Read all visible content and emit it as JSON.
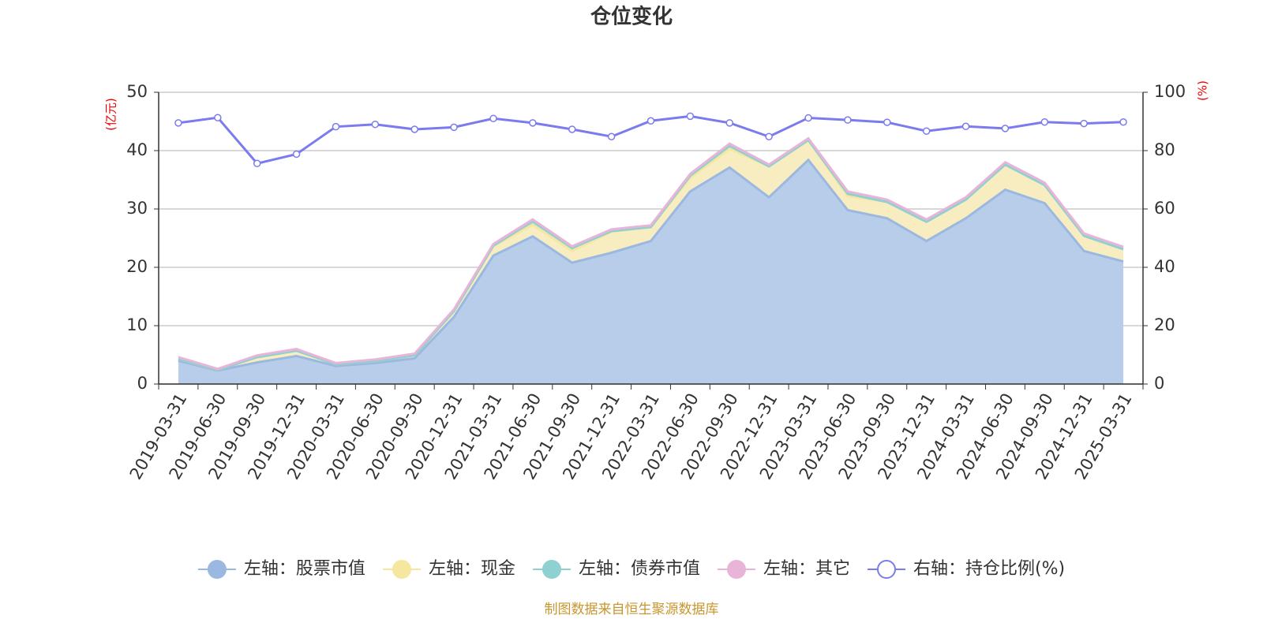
{
  "chart_data": {
    "type": "stacked-area-line",
    "title": "仓位变化",
    "ylabel": "(亿元)",
    "y2label": "(%)",
    "categories": [
      "2019-03-31",
      "2019-06-30",
      "2019-09-30",
      "2019-12-31",
      "2020-03-31",
      "2020-06-30",
      "2020-09-30",
      "2020-12-31",
      "2021-03-31",
      "2021-06-30",
      "2021-09-30",
      "2021-12-31",
      "2022-03-31",
      "2022-06-30",
      "2022-09-30",
      "2022-12-31",
      "2023-03-31",
      "2023-06-30",
      "2023-09-30",
      "2023-12-31",
      "2024-03-31",
      "2024-06-30",
      "2024-09-30",
      "2024-12-31",
      "2025-03-31"
    ],
    "series": [
      {
        "name": "左轴：股票市值",
        "color": "#9bb8e0",
        "fill": "#b8cdea",
        "values": [
          4.0,
          2.3,
          3.7,
          4.8,
          3.1,
          3.6,
          4.4,
          11.5,
          22.0,
          25.3,
          20.8,
          22.5,
          24.5,
          33.0,
          37.1,
          32.0,
          38.4,
          29.8,
          28.4,
          24.5,
          28.4,
          33.3,
          31.0,
          22.8,
          21.0
        ]
      },
      {
        "name": "左轴：现金",
        "color": "#f5e6a0",
        "fill": "#f8edc0",
        "values": [
          0.3,
          0.1,
          0.9,
          0.9,
          0.3,
          0.3,
          0.5,
          1.0,
          1.6,
          2.0,
          2.0,
          3.6,
          2.4,
          2.3,
          3.2,
          5.3,
          3.4,
          2.4,
          2.8,
          3.3,
          3.2,
          4.3,
          3.1,
          2.6,
          2.1
        ]
      },
      {
        "name": "左轴：债券市值",
        "color": "#8fd0d0",
        "fill": "#a8dcdc",
        "values": [
          0,
          0,
          0,
          0,
          0,
          0,
          0,
          0,
          0.1,
          0.6,
          0.5,
          0.1,
          0,
          0.4,
          0.5,
          0,
          0,
          0.4,
          0,
          0,
          0,
          0,
          0,
          0,
          0
        ]
      },
      {
        "name": "左轴：其它",
        "color": "#e8b4d8",
        "fill": "#f0cce4",
        "values": [
          0.3,
          0.2,
          0.3,
          0.3,
          0.2,
          0.3,
          0.3,
          0.3,
          0.3,
          0.3,
          0.3,
          0.3,
          0.3,
          0.3,
          0.4,
          0.3,
          0.3,
          0.4,
          0.4,
          0.4,
          0.4,
          0.4,
          0.4,
          0.4,
          0.4
        ]
      },
      {
        "name": "右轴：持仓比例(%)",
        "color": "#7b7bef",
        "axis": "y2",
        "values": [
          89.5,
          91.3,
          75.6,
          78.8,
          88.2,
          89.0,
          87.3,
          88.0,
          91.0,
          89.5,
          87.3,
          84.8,
          90.2,
          91.8,
          89.5,
          84.8,
          91.2,
          90.5,
          89.7,
          86.7,
          88.3,
          87.6,
          89.8,
          89.3,
          89.8
        ]
      }
    ],
    "ylim": [
      0,
      50
    ],
    "yticks": [
      0,
      10,
      20,
      30,
      40,
      50
    ],
    "y2lim": [
      0,
      100
    ],
    "y2ticks": [
      0,
      20,
      40,
      60,
      80,
      100
    ],
    "grid": true,
    "legend": "bottom",
    "source": "制图数据来自恒生聚源数据库"
  }
}
